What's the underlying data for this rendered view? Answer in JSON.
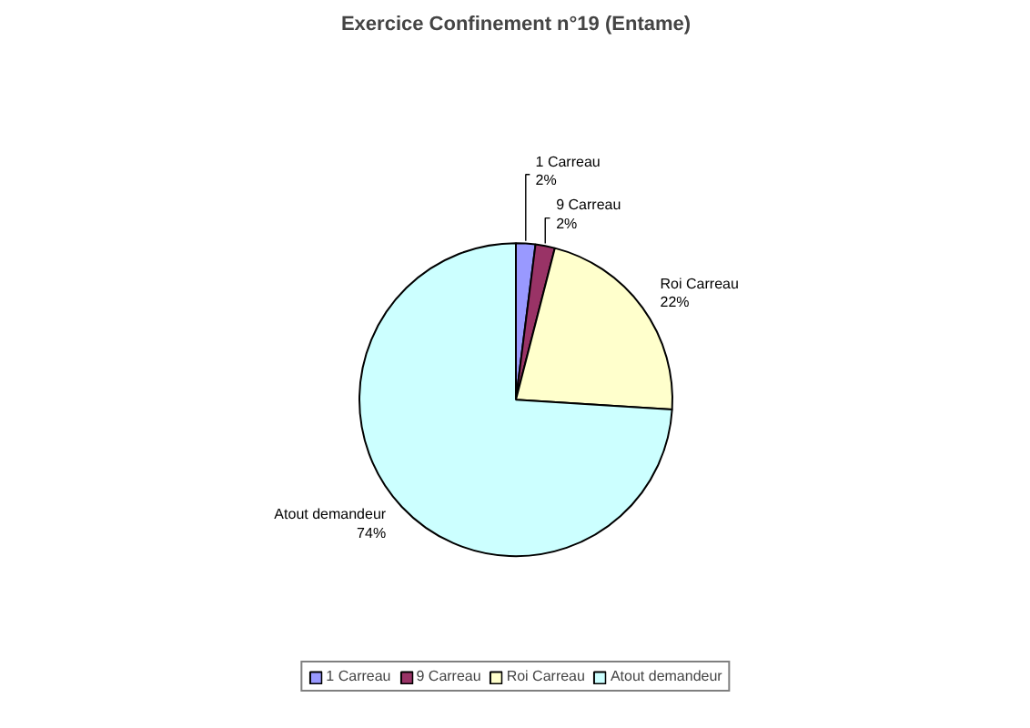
{
  "chart_data": {
    "type": "pie",
    "title": "Exercice Confinement n°19 (Entame)",
    "categories": [
      "1 Carreau",
      "9 Carreau",
      "Roi Carreau",
      "Atout demandeur"
    ],
    "values": [
      2,
      2,
      22,
      74
    ],
    "value_labels": [
      "2%",
      "2%",
      "22%",
      "74%"
    ],
    "colors": [
      "#9999ff",
      "#993366",
      "#ffffcc",
      "#ccffff"
    ],
    "legend": "bottom"
  }
}
